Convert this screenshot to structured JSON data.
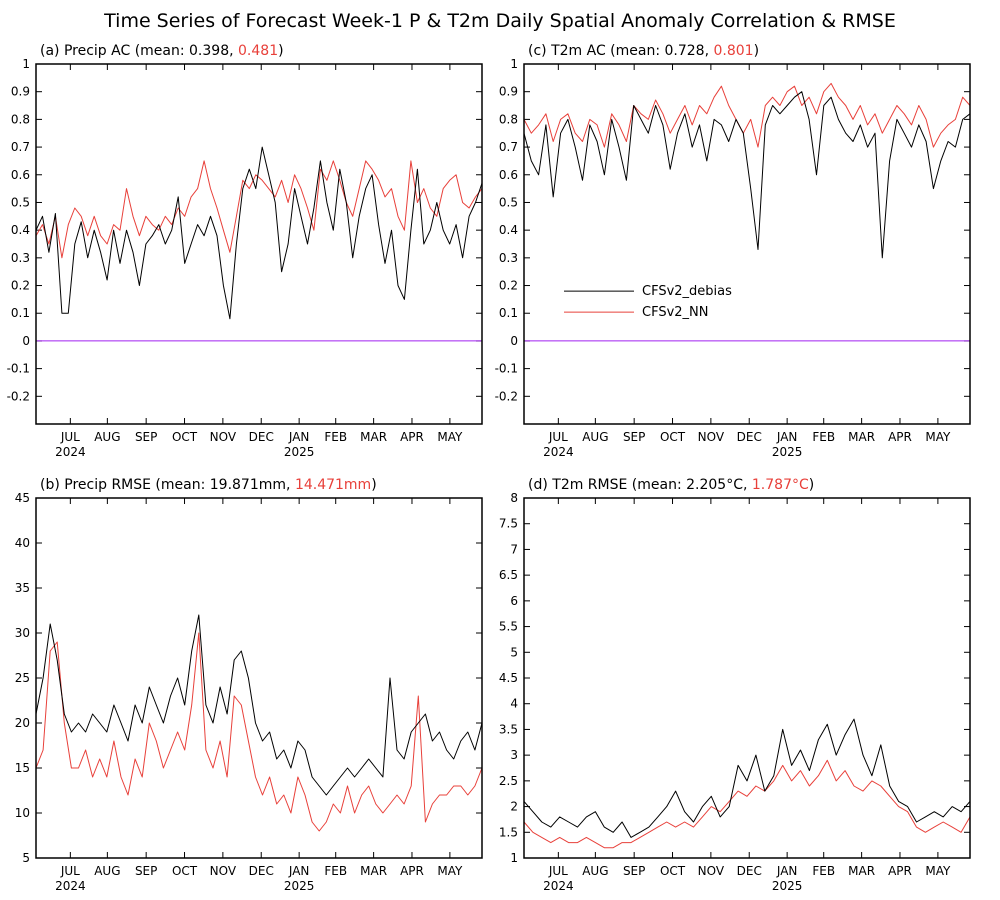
{
  "title": "Time Series of Forecast Week-1 P & T2m Daily Spatial Anomaly Correlation & RMSE",
  "colors": {
    "debias": "#000000",
    "nn": "#e8403a",
    "zero_line": "#a020f0"
  },
  "legend": {
    "debias_label": "CFSv2_debias",
    "nn_label": "CFSv2_NN"
  },
  "chart_data": [
    {
      "id": "a",
      "type": "line",
      "label_prefix": "(a) Precip AC (mean: 0.398, ",
      "label_red": "0.481",
      "label_suffix": ")",
      "ylim": [
        -0.3,
        1.0
      ],
      "yticks": [
        "-0.2",
        "-0.1",
        "0",
        "0.1",
        "0.2",
        "0.3",
        "0.4",
        "0.5",
        "0.6",
        "0.7",
        "0.8",
        "0.9",
        "1"
      ],
      "ytick_values": [
        -0.2,
        -0.1,
        0,
        0.1,
        0.2,
        0.3,
        0.4,
        0.5,
        0.6,
        0.7,
        0.8,
        0.9,
        1
      ],
      "zero_line": 0,
      "series": [
        {
          "key": "debias",
          "values": [
            0.4,
            0.45,
            0.32,
            0.46,
            0.1,
            0.1,
            0.35,
            0.43,
            0.3,
            0.4,
            0.32,
            0.22,
            0.4,
            0.28,
            0.4,
            0.32,
            0.2,
            0.35,
            0.38,
            0.42,
            0.35,
            0.4,
            0.52,
            0.28,
            0.35,
            0.42,
            0.38,
            0.45,
            0.38,
            0.2,
            0.08,
            0.35,
            0.55,
            0.62,
            0.55,
            0.7,
            0.6,
            0.5,
            0.25,
            0.35,
            0.55,
            0.45,
            0.35,
            0.48,
            0.65,
            0.5,
            0.4,
            0.62,
            0.5,
            0.3,
            0.45,
            0.55,
            0.6,
            0.42,
            0.28,
            0.4,
            0.2,
            0.15,
            0.4,
            0.62,
            0.35,
            0.4,
            0.5,
            0.4,
            0.35,
            0.42,
            0.3,
            0.45,
            0.5,
            0.57
          ]
        },
        {
          "key": "nn",
          "values": [
            0.38,
            0.42,
            0.35,
            0.45,
            0.3,
            0.42,
            0.48,
            0.45,
            0.38,
            0.45,
            0.38,
            0.35,
            0.42,
            0.4,
            0.55,
            0.45,
            0.38,
            0.45,
            0.42,
            0.4,
            0.45,
            0.42,
            0.48,
            0.45,
            0.52,
            0.55,
            0.65,
            0.55,
            0.48,
            0.4,
            0.32,
            0.45,
            0.58,
            0.55,
            0.6,
            0.58,
            0.55,
            0.52,
            0.58,
            0.5,
            0.6,
            0.55,
            0.48,
            0.4,
            0.62,
            0.58,
            0.65,
            0.58,
            0.5,
            0.45,
            0.55,
            0.65,
            0.62,
            0.58,
            0.52,
            0.55,
            0.45,
            0.4,
            0.65,
            0.5,
            0.55,
            0.48,
            0.45,
            0.55,
            0.58,
            0.6,
            0.5,
            0.48,
            0.52,
            0.55
          ]
        }
      ]
    },
    {
      "id": "c",
      "type": "line",
      "label_prefix": "(c) T2m AC (mean: 0.728, ",
      "label_red": "0.801",
      "label_suffix": ")",
      "ylim": [
        -0.3,
        1.0
      ],
      "yticks": [
        "-0.2",
        "-0.1",
        "0",
        "0.1",
        "0.2",
        "0.3",
        "0.4",
        "0.5",
        "0.6",
        "0.7",
        "0.8",
        "0.9",
        "1"
      ],
      "ytick_values": [
        -0.2,
        -0.1,
        0,
        0.1,
        0.2,
        0.3,
        0.4,
        0.5,
        0.6,
        0.7,
        0.8,
        0.9,
        1
      ],
      "zero_line": 0,
      "legend_position": "middle-left",
      "series": [
        {
          "key": "debias",
          "values": [
            0.75,
            0.65,
            0.6,
            0.78,
            0.52,
            0.75,
            0.8,
            0.7,
            0.58,
            0.78,
            0.72,
            0.6,
            0.8,
            0.7,
            0.58,
            0.85,
            0.8,
            0.75,
            0.85,
            0.78,
            0.62,
            0.75,
            0.82,
            0.7,
            0.78,
            0.65,
            0.8,
            0.78,
            0.72,
            0.8,
            0.75,
            0.55,
            0.33,
            0.78,
            0.85,
            0.82,
            0.85,
            0.88,
            0.9,
            0.8,
            0.6,
            0.85,
            0.88,
            0.8,
            0.75,
            0.72,
            0.78,
            0.7,
            0.75,
            0.3,
            0.65,
            0.8,
            0.75,
            0.7,
            0.78,
            0.72,
            0.55,
            0.65,
            0.72,
            0.7,
            0.8,
            0.82
          ]
        },
        {
          "key": "nn",
          "values": [
            0.8,
            0.75,
            0.78,
            0.82,
            0.72,
            0.8,
            0.82,
            0.75,
            0.72,
            0.8,
            0.78,
            0.7,
            0.82,
            0.78,
            0.72,
            0.85,
            0.82,
            0.8,
            0.87,
            0.82,
            0.75,
            0.8,
            0.85,
            0.78,
            0.85,
            0.82,
            0.88,
            0.92,
            0.85,
            0.8,
            0.75,
            0.8,
            0.7,
            0.85,
            0.88,
            0.85,
            0.9,
            0.92,
            0.85,
            0.88,
            0.82,
            0.9,
            0.93,
            0.88,
            0.85,
            0.8,
            0.85,
            0.78,
            0.82,
            0.75,
            0.8,
            0.85,
            0.82,
            0.78,
            0.85,
            0.8,
            0.7,
            0.75,
            0.78,
            0.8,
            0.88,
            0.85
          ]
        }
      ]
    },
    {
      "id": "b",
      "type": "line",
      "label_prefix": "(b) Precip RMSE (mean: 19.871mm, ",
      "label_red": "14.471mm",
      "label_suffix": ")",
      "ylim": [
        5,
        45
      ],
      "yticks": [
        "5",
        "10",
        "15",
        "20",
        "25",
        "30",
        "35",
        "40",
        "45"
      ],
      "ytick_values": [
        5,
        10,
        15,
        20,
        25,
        30,
        35,
        40,
        45
      ],
      "series": [
        {
          "key": "debias",
          "values": [
            21,
            25,
            31,
            27,
            21,
            19,
            20,
            19,
            21,
            20,
            19,
            22,
            20,
            18,
            22,
            20,
            24,
            22,
            20,
            23,
            25,
            22,
            28,
            32,
            22,
            20,
            24,
            21,
            27,
            28,
            25,
            20,
            18,
            19,
            16,
            17,
            15,
            18,
            17,
            14,
            13,
            12,
            13,
            14,
            15,
            14,
            15,
            16,
            15,
            14,
            25,
            17,
            16,
            19,
            20,
            21,
            18,
            19,
            17,
            16,
            18,
            19,
            17,
            20
          ]
        },
        {
          "key": "nn",
          "values": [
            15,
            17,
            28,
            29,
            20,
            15,
            15,
            17,
            14,
            16,
            14,
            18,
            14,
            12,
            16,
            14,
            20,
            18,
            15,
            17,
            19,
            17,
            22,
            30,
            17,
            15,
            18,
            14,
            23,
            22,
            18,
            14,
            12,
            14,
            11,
            12,
            10,
            14,
            12,
            9,
            8,
            9,
            11,
            10,
            13,
            10,
            12,
            13,
            11,
            10,
            11,
            12,
            11,
            13,
            23,
            9,
            11,
            12,
            12,
            13,
            13,
            12,
            13,
            15
          ]
        }
      ]
    },
    {
      "id": "d",
      "type": "line",
      "label_prefix": "(d) T2m RMSE (mean: 2.205°C, ",
      "label_red": "1.787°C",
      "label_suffix": ")",
      "ylim": [
        1,
        8
      ],
      "yticks": [
        "1",
        "1.5",
        "2",
        "2.5",
        "3",
        "3.5",
        "4",
        "4.5",
        "5",
        "5.5",
        "6",
        "6.5",
        "7",
        "7.5",
        "8"
      ],
      "ytick_values": [
        1,
        1.5,
        2,
        2.5,
        3,
        3.5,
        4,
        4.5,
        5,
        5.5,
        6,
        6.5,
        7,
        7.5,
        8
      ],
      "series": [
        {
          "key": "debias",
          "values": [
            2.1,
            1.9,
            1.7,
            1.6,
            1.8,
            1.7,
            1.6,
            1.8,
            1.9,
            1.6,
            1.5,
            1.7,
            1.4,
            1.5,
            1.6,
            1.8,
            2.0,
            2.3,
            1.9,
            1.7,
            2.0,
            2.2,
            1.8,
            2.0,
            2.8,
            2.5,
            3.0,
            2.3,
            2.6,
            3.5,
            2.8,
            3.1,
            2.7,
            3.3,
            3.6,
            3.0,
            3.4,
            3.7,
            3.0,
            2.6,
            3.2,
            2.4,
            2.1,
            2.0,
            1.7,
            1.8,
            1.9,
            1.8,
            2.0,
            1.9,
            2.1
          ]
        },
        {
          "key": "nn",
          "values": [
            1.7,
            1.5,
            1.4,
            1.3,
            1.4,
            1.3,
            1.3,
            1.4,
            1.3,
            1.2,
            1.2,
            1.3,
            1.3,
            1.4,
            1.5,
            1.6,
            1.7,
            1.6,
            1.7,
            1.6,
            1.8,
            2.0,
            1.9,
            2.1,
            2.3,
            2.2,
            2.4,
            2.3,
            2.5,
            2.8,
            2.5,
            2.7,
            2.4,
            2.6,
            2.9,
            2.5,
            2.7,
            2.4,
            2.3,
            2.5,
            2.4,
            2.2,
            2.0,
            1.9,
            1.6,
            1.5,
            1.6,
            1.7,
            1.6,
            1.5,
            1.8
          ]
        }
      ]
    }
  ],
  "x_axis": {
    "months": [
      "JUL",
      "AUG",
      "SEP",
      "OCT",
      "NOV",
      "DEC",
      "JAN",
      "FEB",
      "MAR",
      "APR",
      "MAY"
    ],
    "month_positions": [
      0.077,
      0.16,
      0.247,
      0.333,
      0.419,
      0.505,
      0.59,
      0.672,
      0.757,
      0.843,
      0.928
    ],
    "year_labels": [
      {
        "label": "2024",
        "at": 0
      },
      {
        "label": "2025",
        "at": 6
      }
    ]
  }
}
